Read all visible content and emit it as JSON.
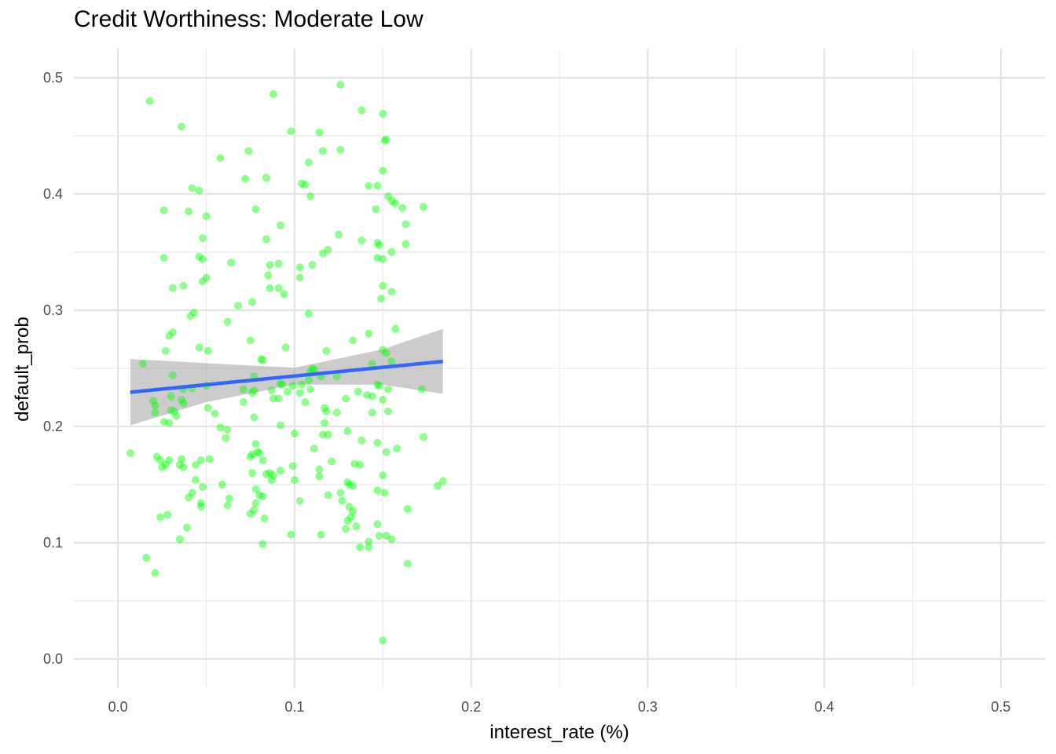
{
  "chart_data": {
    "type": "scatter",
    "title": "Credit Worthiness: Moderate Low",
    "xlabel": "interest_rate (%)",
    "ylabel": "default_prob",
    "xlim": [
      -0.025,
      0.525
    ],
    "ylim": [
      -0.025,
      0.525
    ],
    "x_ticks": [
      0.0,
      0.1,
      0.2,
      0.3,
      0.4,
      0.5
    ],
    "x_tick_labels": [
      "0.0",
      "0.1",
      "0.2",
      "0.3",
      "0.4",
      "0.5"
    ],
    "y_ticks": [
      0.0,
      0.1,
      0.2,
      0.3,
      0.4,
      0.5
    ],
    "y_tick_labels": [
      "0.0",
      "0.1",
      "0.2",
      "0.3",
      "0.4",
      "0.5"
    ],
    "grid": true,
    "legend": "none",
    "point_color": "#00ff00",
    "line_color": "#3366ff",
    "band_color": "#999999",
    "points": [
      [
        0.018,
        0.48
      ],
      [
        0.036,
        0.458
      ],
      [
        0.088,
        0.486
      ],
      [
        0.126,
        0.494
      ],
      [
        0.138,
        0.472
      ],
      [
        0.15,
        0.469
      ],
      [
        0.098,
        0.454
      ],
      [
        0.114,
        0.453
      ],
      [
        0.151,
        0.446
      ],
      [
        0.152,
        0.447
      ],
      [
        0.074,
        0.437
      ],
      [
        0.116,
        0.437
      ],
      [
        0.126,
        0.438
      ],
      [
        0.058,
        0.431
      ],
      [
        0.108,
        0.427
      ],
      [
        0.15,
        0.42
      ],
      [
        0.072,
        0.413
      ],
      [
        0.084,
        0.414
      ],
      [
        0.104,
        0.409
      ],
      [
        0.106,
        0.408
      ],
      [
        0.142,
        0.407
      ],
      [
        0.147,
        0.407
      ],
      [
        0.042,
        0.405
      ],
      [
        0.046,
        0.403
      ],
      [
        0.109,
        0.398
      ],
      [
        0.153,
        0.398
      ],
      [
        0.155,
        0.394
      ],
      [
        0.157,
        0.392
      ],
      [
        0.161,
        0.388
      ],
      [
        0.173,
        0.389
      ],
      [
        0.026,
        0.386
      ],
      [
        0.04,
        0.385
      ],
      [
        0.078,
        0.387
      ],
      [
        0.146,
        0.387
      ],
      [
        0.05,
        0.381
      ],
      [
        0.092,
        0.373
      ],
      [
        0.163,
        0.374
      ],
      [
        0.048,
        0.362
      ],
      [
        0.084,
        0.361
      ],
      [
        0.125,
        0.365
      ],
      [
        0.138,
        0.36
      ],
      [
        0.147,
        0.358
      ],
      [
        0.148,
        0.356
      ],
      [
        0.163,
        0.357
      ],
      [
        0.119,
        0.352
      ],
      [
        0.116,
        0.349
      ],
      [
        0.155,
        0.35
      ],
      [
        0.026,
        0.345
      ],
      [
        0.046,
        0.346
      ],
      [
        0.048,
        0.344
      ],
      [
        0.064,
        0.341
      ],
      [
        0.086,
        0.339
      ],
      [
        0.091,
        0.34
      ],
      [
        0.103,
        0.337
      ],
      [
        0.11,
        0.339
      ],
      [
        0.147,
        0.345
      ],
      [
        0.15,
        0.344
      ],
      [
        0.05,
        0.328
      ],
      [
        0.085,
        0.33
      ],
      [
        0.103,
        0.328
      ],
      [
        0.048,
        0.325
      ],
      [
        0.031,
        0.319
      ],
      [
        0.037,
        0.321
      ],
      [
        0.086,
        0.319
      ],
      [
        0.091,
        0.319
      ],
      [
        0.094,
        0.314
      ],
      [
        0.15,
        0.321
      ],
      [
        0.155,
        0.316
      ],
      [
        0.149,
        0.31
      ],
      [
        0.068,
        0.304
      ],
      [
        0.076,
        0.307
      ],
      [
        0.108,
        0.297
      ],
      [
        0.043,
        0.298
      ],
      [
        0.041,
        0.295
      ],
      [
        0.062,
        0.29
      ],
      [
        0.157,
        0.284
      ],
      [
        0.031,
        0.281
      ],
      [
        0.029,
        0.278
      ],
      [
        0.142,
        0.28
      ],
      [
        0.075,
        0.274
      ],
      [
        0.133,
        0.274
      ],
      [
        0.027,
        0.265
      ],
      [
        0.046,
        0.268
      ],
      [
        0.051,
        0.265
      ],
      [
        0.095,
        0.268
      ],
      [
        0.118,
        0.265
      ],
      [
        0.15,
        0.266
      ],
      [
        0.152,
        0.263
      ],
      [
        0.081,
        0.258
      ],
      [
        0.082,
        0.257
      ],
      [
        0.155,
        0.256
      ],
      [
        0.014,
        0.254
      ],
      [
        0.144,
        0.254
      ],
      [
        0.11,
        0.25
      ],
      [
        0.111,
        0.249
      ],
      [
        0.109,
        0.247
      ],
      [
        0.031,
        0.244
      ],
      [
        0.077,
        0.243
      ],
      [
        0.115,
        0.243
      ],
      [
        0.124,
        0.243
      ],
      [
        0.108,
        0.24
      ],
      [
        0.092,
        0.237
      ],
      [
        0.093,
        0.236
      ],
      [
        0.099,
        0.235
      ],
      [
        0.104,
        0.236
      ],
      [
        0.05,
        0.235
      ],
      [
        0.147,
        0.236
      ],
      [
        0.148,
        0.235
      ],
      [
        0.172,
        0.232
      ],
      [
        0.071,
        0.232
      ],
      [
        0.077,
        0.231
      ],
      [
        0.087,
        0.231
      ],
      [
        0.037,
        0.232
      ],
      [
        0.042,
        0.233
      ],
      [
        0.076,
        0.229
      ],
      [
        0.096,
        0.23
      ],
      [
        0.103,
        0.229
      ],
      [
        0.109,
        0.232
      ],
      [
        0.136,
        0.23
      ],
      [
        0.153,
        0.232
      ],
      [
        0.03,
        0.226
      ],
      [
        0.036,
        0.223
      ],
      [
        0.141,
        0.227
      ],
      [
        0.144,
        0.226
      ],
      [
        0.129,
        0.224
      ],
      [
        0.088,
        0.224
      ],
      [
        0.091,
        0.224
      ],
      [
        0.106,
        0.221
      ],
      [
        0.037,
        0.22
      ],
      [
        0.071,
        0.221
      ],
      [
        0.02,
        0.222
      ],
      [
        0.021,
        0.218
      ],
      [
        0.117,
        0.216
      ],
      [
        0.15,
        0.223
      ],
      [
        0.051,
        0.216
      ],
      [
        0.055,
        0.211
      ],
      [
        0.03,
        0.214
      ],
      [
        0.032,
        0.213
      ],
      [
        0.021,
        0.212
      ],
      [
        0.033,
        0.209
      ],
      [
        0.118,
        0.213
      ],
      [
        0.124,
        0.212
      ],
      [
        0.144,
        0.212
      ],
      [
        0.153,
        0.213
      ],
      [
        0.077,
        0.208
      ],
      [
        0.026,
        0.204
      ],
      [
        0.029,
        0.203
      ],
      [
        0.117,
        0.203
      ],
      [
        0.092,
        0.201
      ],
      [
        0.058,
        0.199
      ],
      [
        0.062,
        0.197
      ],
      [
        0.061,
        0.19
      ],
      [
        0.116,
        0.193
      ],
      [
        0.119,
        0.193
      ],
      [
        0.13,
        0.196
      ],
      [
        0.138,
        0.188
      ],
      [
        0.1,
        0.194
      ],
      [
        0.147,
        0.186
      ],
      [
        0.078,
        0.185
      ],
      [
        0.173,
        0.191
      ],
      [
        0.079,
        0.178
      ],
      [
        0.08,
        0.177
      ],
      [
        0.075,
        0.174
      ],
      [
        0.076,
        0.176
      ],
      [
        0.111,
        0.181
      ],
      [
        0.152,
        0.178
      ],
      [
        0.158,
        0.181
      ],
      [
        0.007,
        0.177
      ],
      [
        0.022,
        0.174
      ],
      [
        0.024,
        0.171
      ],
      [
        0.029,
        0.171
      ],
      [
        0.036,
        0.172
      ],
      [
        0.047,
        0.171
      ],
      [
        0.052,
        0.172
      ],
      [
        0.082,
        0.171
      ],
      [
        0.025,
        0.165
      ],
      [
        0.027,
        0.167
      ],
      [
        0.035,
        0.167
      ],
      [
        0.037,
        0.165
      ],
      [
        0.044,
        0.167
      ],
      [
        0.099,
        0.166
      ],
      [
        0.121,
        0.17
      ],
      [
        0.134,
        0.168
      ],
      [
        0.137,
        0.167
      ],
      [
        0.076,
        0.16
      ],
      [
        0.084,
        0.159
      ],
      [
        0.086,
        0.16
      ],
      [
        0.088,
        0.158
      ],
      [
        0.092,
        0.162
      ],
      [
        0.114,
        0.163
      ],
      [
        0.114,
        0.157
      ],
      [
        0.15,
        0.158
      ],
      [
        0.087,
        0.154
      ],
      [
        0.1,
        0.154
      ],
      [
        0.044,
        0.154
      ],
      [
        0.048,
        0.148
      ],
      [
        0.059,
        0.15
      ],
      [
        0.13,
        0.152
      ],
      [
        0.131,
        0.15
      ],
      [
        0.133,
        0.149
      ],
      [
        0.181,
        0.149
      ],
      [
        0.184,
        0.153
      ],
      [
        0.078,
        0.146
      ],
      [
        0.042,
        0.143
      ],
      [
        0.04,
        0.139
      ],
      [
        0.08,
        0.141
      ],
      [
        0.082,
        0.14
      ],
      [
        0.119,
        0.141
      ],
      [
        0.126,
        0.143
      ],
      [
        0.147,
        0.145
      ],
      [
        0.151,
        0.143
      ],
      [
        0.063,
        0.138
      ],
      [
        0.047,
        0.134
      ],
      [
        0.047,
        0.131
      ],
      [
        0.062,
        0.132
      ],
      [
        0.078,
        0.134
      ],
      [
        0.077,
        0.128
      ],
      [
        0.075,
        0.125
      ],
      [
        0.103,
        0.136
      ],
      [
        0.127,
        0.136
      ],
      [
        0.131,
        0.131
      ],
      [
        0.133,
        0.127
      ],
      [
        0.132,
        0.122
      ],
      [
        0.024,
        0.122
      ],
      [
        0.028,
        0.124
      ],
      [
        0.13,
        0.119
      ],
      [
        0.135,
        0.114
      ],
      [
        0.129,
        0.112
      ],
      [
        0.147,
        0.116
      ],
      [
        0.164,
        0.129
      ],
      [
        0.083,
        0.121
      ],
      [
        0.039,
        0.113
      ],
      [
        0.098,
        0.107
      ],
      [
        0.115,
        0.107
      ],
      [
        0.148,
        0.106
      ],
      [
        0.152,
        0.106
      ],
      [
        0.155,
        0.103
      ],
      [
        0.035,
        0.103
      ],
      [
        0.082,
        0.099
      ],
      [
        0.142,
        0.101
      ],
      [
        0.137,
        0.096
      ],
      [
        0.142,
        0.096
      ],
      [
        0.016,
        0.087
      ],
      [
        0.021,
        0.074
      ],
      [
        0.164,
        0.082
      ],
      [
        0.15,
        0.016
      ]
    ],
    "trend_line": {
      "x": [
        0.007,
        0.184
      ],
      "y": [
        0.2295,
        0.256
      ]
    },
    "confidence_band": {
      "x": [
        0.007,
        0.05,
        0.1,
        0.15,
        0.184
      ],
      "lower": [
        0.201,
        0.221,
        0.236,
        0.236,
        0.228
      ],
      "upper": [
        0.258,
        0.2545,
        0.2505,
        0.2665,
        0.284
      ]
    }
  }
}
